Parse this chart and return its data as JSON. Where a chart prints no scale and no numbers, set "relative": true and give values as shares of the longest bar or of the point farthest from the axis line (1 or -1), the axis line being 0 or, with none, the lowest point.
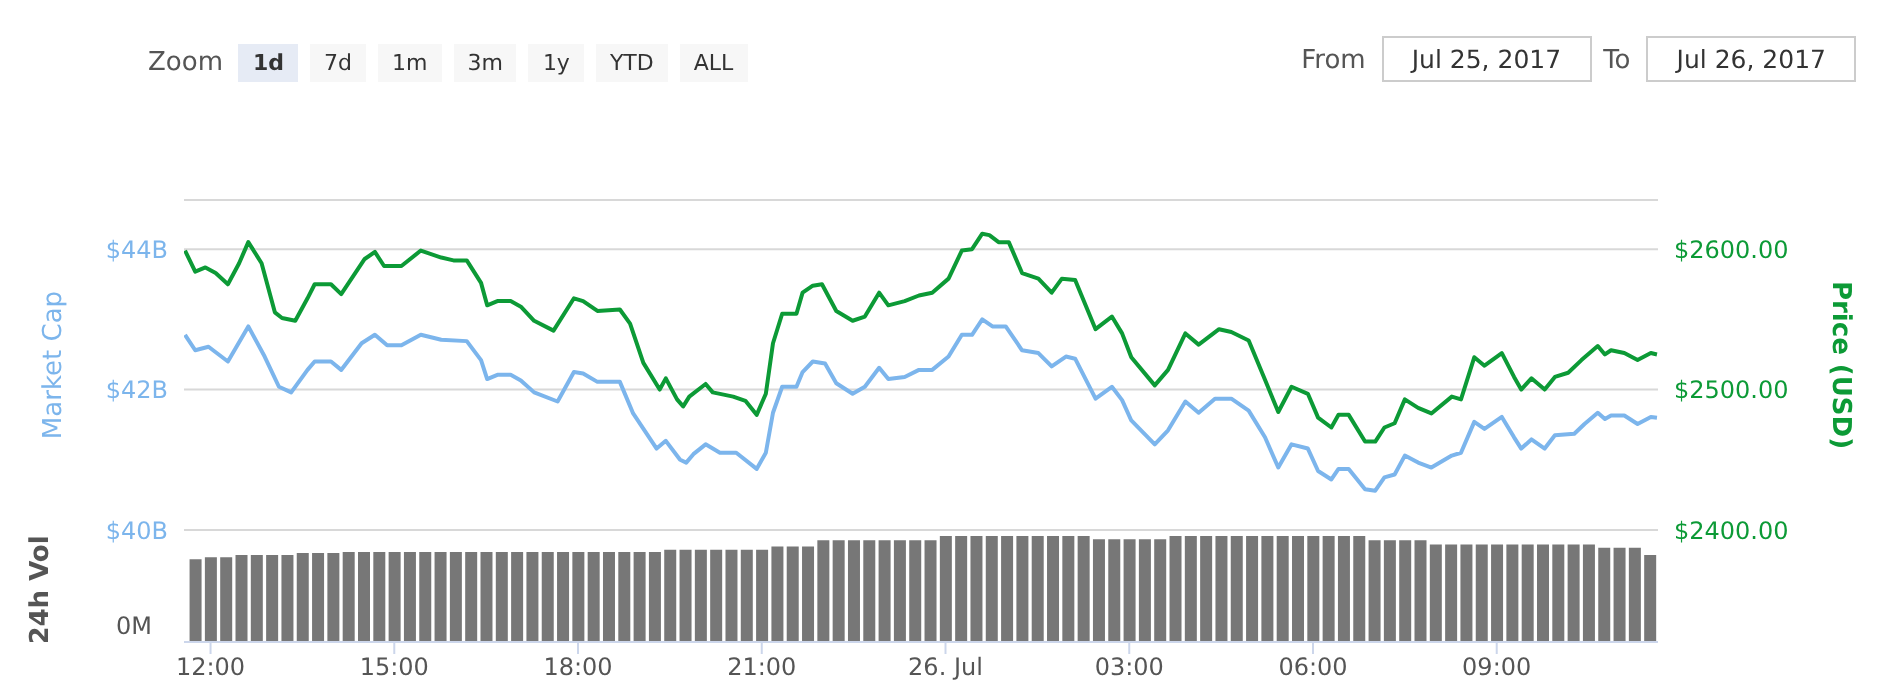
{
  "chart_data": [
    {
      "type": "line",
      "annotations": [
        "Zoom",
        "1d",
        "7d",
        "1m",
        "3m",
        "1y",
        "YTD",
        "ALL",
        "From",
        "Jul 25, 2017",
        "To",
        "Jul 26, 2017"
      ],
      "ylabel": "Market Cap",
      "y2label": "Price (USD)",
      "grid": "y",
      "marker": "none",
      "tick_labels": "y",
      "xlim": [
        "2017-07-25T11:34",
        "2017-07-26T11:38"
      ],
      "ylim": [
        40,
        44.7
      ],
      "yticks": [
        {
          "value": 40,
          "label": "$40B"
        },
        {
          "value": 42,
          "label": "$42B"
        },
        {
          "value": 44,
          "label": "$44B"
        }
      ],
      "y2lim": [
        2400,
        2635
      ],
      "y2ticks": [
        {
          "value": 2400,
          "label": "$2400.00"
        },
        {
          "value": 2500,
          "label": "$2500.00"
        },
        {
          "value": 2600,
          "label": "$2600.00"
        }
      ],
      "series": [
        {
          "color": "#7cb5ec",
          "x": [
            "2017-07-25T11:35",
            "2017-07-25T11:45",
            "2017-07-25T11:58",
            "2017-07-25T12:17",
            "2017-07-25T12:37",
            "2017-07-25T12:53",
            "2017-07-25T13:07",
            "2017-07-25T13:19",
            "2017-07-25T13:35",
            "2017-07-25T13:42",
            "2017-07-25T13:58",
            "2017-07-25T14:08",
            "2017-07-25T14:28",
            "2017-07-25T14:41",
            "2017-07-25T14:53",
            "2017-07-25T15:07",
            "2017-07-25T15:26",
            "2017-07-25T15:46",
            "2017-07-25T16:11",
            "2017-07-25T16:25",
            "2017-07-25T16:31",
            "2017-07-25T16:41",
            "2017-07-25T16:54",
            "2017-07-25T17:04",
            "2017-07-25T17:17",
            "2017-07-25T17:40",
            "2017-07-25T17:56",
            "2017-07-25T18:05",
            "2017-07-25T18:19",
            "2017-07-25T18:41",
            "2017-07-25T18:54",
            "2017-07-25T19:17",
            "2017-07-25T19:26",
            "2017-07-25T19:40",
            "2017-07-25T19:46",
            "2017-07-25T19:53",
            "2017-07-25T20:05",
            "2017-07-25T20:19",
            "2017-07-25T20:35",
            "2017-07-25T20:55",
            "2017-07-25T21:04",
            "2017-07-25T21:11",
            "2017-07-25T21:20",
            "2017-07-25T21:34",
            "2017-07-25T21:40",
            "2017-07-25T21:50",
            "2017-07-25T22:02",
            "2017-07-25T22:13",
            "2017-07-25T22:29",
            "2017-07-25T22:41",
            "2017-07-25T22:55",
            "2017-07-25T23:04",
            "2017-07-25T23:20",
            "2017-07-25T23:34",
            "2017-07-25T23:47",
            "2017-07-26T00:03",
            "2017-07-26T00:16",
            "2017-07-26T00:26",
            "2017-07-26T00:36",
            "2017-07-26T00:46",
            "2017-07-26T00:59",
            "2017-07-26T01:15",
            "2017-07-26T01:31",
            "2017-07-26T01:44",
            "2017-07-26T01:58",
            "2017-07-26T02:07",
            "2017-07-26T02:27",
            "2017-07-26T02:43",
            "2017-07-26T02:53",
            "2017-07-26T03:02",
            "2017-07-26T03:25",
            "2017-07-26T03:38",
            "2017-07-26T03:55",
            "2017-07-26T04:08",
            "2017-07-26T04:24",
            "2017-07-26T04:40",
            "2017-07-26T04:57",
            "2017-07-26T05:13",
            "2017-07-26T05:26",
            "2017-07-26T05:39",
            "2017-07-26T05:55",
            "2017-07-26T06:05",
            "2017-07-26T06:18",
            "2017-07-26T06:25",
            "2017-07-26T06:35",
            "2017-07-26T06:51",
            "2017-07-26T07:01",
            "2017-07-26T07:10",
            "2017-07-26T07:20",
            "2017-07-26T07:30",
            "2017-07-26T07:43",
            "2017-07-26T07:56",
            "2017-07-26T08:16",
            "2017-07-26T08:25",
            "2017-07-26T08:38",
            "2017-07-26T08:48",
            "2017-07-26T09:05",
            "2017-07-26T09:17",
            "2017-07-26T09:24",
            "2017-07-26T09:34",
            "2017-07-26T09:47",
            "2017-07-26T09:57",
            "2017-07-26T10:16",
            "2017-07-26T10:26",
            "2017-07-26T10:39",
            "2017-07-26T10:46",
            "2017-07-26T10:52",
            "2017-07-26T11:05",
            "2017-07-26T11:18",
            "2017-07-26T11:31",
            "2017-07-26T11:37"
          ],
          "values": [
            42.78,
            42.56,
            42.61,
            42.4,
            42.9,
            42.47,
            42.04,
            41.96,
            42.28,
            42.4,
            42.4,
            42.28,
            42.66,
            42.78,
            42.63,
            42.63,
            42.78,
            42.71,
            42.69,
            42.42,
            42.15,
            42.21,
            42.21,
            42.13,
            41.96,
            41.83,
            42.25,
            42.23,
            42.11,
            42.11,
            41.66,
            41.16,
            41.27,
            41.0,
            40.96,
            41.08,
            41.22,
            41.1,
            41.1,
            40.87,
            41.1,
            41.67,
            42.04,
            42.04,
            42.25,
            42.4,
            42.37,
            42.09,
            41.94,
            42.04,
            42.31,
            42.15,
            42.18,
            42.28,
            42.28,
            42.47,
            42.78,
            42.78,
            43.0,
            42.9,
            42.9,
            42.56,
            42.52,
            42.33,
            42.47,
            42.44,
            41.87,
            42.04,
            41.85,
            41.56,
            41.22,
            41.42,
            41.83,
            41.67,
            41.87,
            41.87,
            41.7,
            41.32,
            40.89,
            41.22,
            41.16,
            40.84,
            40.72,
            40.87,
            40.87,
            40.58,
            40.56,
            40.75,
            40.79,
            41.06,
            40.96,
            40.89,
            41.06,
            41.1,
            41.54,
            41.44,
            41.61,
            41.32,
            41.16,
            41.29,
            41.16,
            41.35,
            41.37,
            41.51,
            41.67,
            41.58,
            41.63,
            41.63,
            41.51,
            41.61,
            41.6
          ]
        },
        {
          "color": "#0c9a36",
          "axis": "y2",
          "x": [
            "2017-07-25T11:35",
            "2017-07-25T11:45",
            "2017-07-25T11:55",
            "2017-07-25T12:05",
            "2017-07-25T12:17",
            "2017-07-25T12:28",
            "2017-07-25T12:37",
            "2017-07-25T12:50",
            "2017-07-25T13:03",
            "2017-07-25T13:10",
            "2017-07-25T13:23",
            "2017-07-25T13:35",
            "2017-07-25T13:42",
            "2017-07-25T13:58",
            "2017-07-25T14:08",
            "2017-07-25T14:31",
            "2017-07-25T14:41",
            "2017-07-25T14:50",
            "2017-07-25T15:07",
            "2017-07-25T15:26",
            "2017-07-25T15:46",
            "2017-07-25T15:58",
            "2017-07-25T16:11",
            "2017-07-25T16:25",
            "2017-07-25T16:31",
            "2017-07-25T16:41",
            "2017-07-25T16:54",
            "2017-07-25T17:04",
            "2017-07-25T17:17",
            "2017-07-25T17:36",
            "2017-07-25T17:56",
            "2017-07-25T18:05",
            "2017-07-25T18:19",
            "2017-07-25T18:41",
            "2017-07-25T18:51",
            "2017-07-25T19:04",
            "2017-07-25T19:20",
            "2017-07-25T19:26",
            "2017-07-25T19:37",
            "2017-07-25T19:43",
            "2017-07-25T19:49",
            "2017-07-25T20:05",
            "2017-07-25T20:12",
            "2017-07-25T20:32",
            "2017-07-25T20:44",
            "2017-07-25T20:55",
            "2017-07-25T21:04",
            "2017-07-25T21:11",
            "2017-07-25T21:20",
            "2017-07-25T21:34",
            "2017-07-25T21:40",
            "2017-07-25T21:50",
            "2017-07-25T21:59",
            "2017-07-25T22:13",
            "2017-07-25T22:29",
            "2017-07-25T22:41",
            "2017-07-25T22:55",
            "2017-07-25T23:04",
            "2017-07-25T23:20",
            "2017-07-25T23:34",
            "2017-07-25T23:47",
            "2017-07-26T00:03",
            "2017-07-26T00:16",
            "2017-07-26T00:26",
            "2017-07-26T00:36",
            "2017-07-26T00:43",
            "2017-07-26T00:52",
            "2017-07-26T01:02",
            "2017-07-26T01:15",
            "2017-07-26T01:31",
            "2017-07-26T01:44",
            "2017-07-26T01:54",
            "2017-07-26T02:07",
            "2017-07-26T02:27",
            "2017-07-26T02:43",
            "2017-07-26T02:53",
            "2017-07-26T03:02",
            "2017-07-26T03:25",
            "2017-07-26T03:38",
            "2017-07-26T03:55",
            "2017-07-26T04:08",
            "2017-07-26T04:28",
            "2017-07-26T04:40",
            "2017-07-26T04:57",
            "2017-07-26T05:13",
            "2017-07-26T05:26",
            "2017-07-26T05:39",
            "2017-07-26T05:55",
            "2017-07-26T06:05",
            "2017-07-26T06:18",
            "2017-07-26T06:25",
            "2017-07-26T06:35",
            "2017-07-26T06:51",
            "2017-07-26T07:01",
            "2017-07-26T07:10",
            "2017-07-26T07:20",
            "2017-07-26T07:30",
            "2017-07-26T07:43",
            "2017-07-26T07:56",
            "2017-07-26T08:16",
            "2017-07-26T08:25",
            "2017-07-26T08:38",
            "2017-07-26T08:48",
            "2017-07-26T09:05",
            "2017-07-26T09:17",
            "2017-07-26T09:24",
            "2017-07-26T09:34",
            "2017-07-26T09:47",
            "2017-07-26T09:57",
            "2017-07-26T10:10",
            "2017-07-26T10:23",
            "2017-07-26T10:39",
            "2017-07-26T10:46",
            "2017-07-26T10:52",
            "2017-07-26T11:05",
            "2017-07-26T11:18",
            "2017-07-26T11:31",
            "2017-07-26T11:37"
          ],
          "values": [
            2599,
            2584,
            2587,
            2583,
            2575,
            2590,
            2605,
            2590,
            2555,
            2551,
            2549,
            2565,
            2575,
            2575,
            2568,
            2593,
            2598,
            2588,
            2588,
            2599,
            2594,
            2592,
            2592,
            2576,
            2560,
            2563,
            2563,
            2559,
            2549,
            2542,
            2565,
            2563,
            2556,
            2557,
            2547,
            2519,
            2500,
            2508,
            2493,
            2488,
            2495,
            2504,
            2498,
            2495,
            2492,
            2482,
            2497,
            2533,
            2554,
            2554,
            2569,
            2574,
            2575,
            2556,
            2549,
            2552,
            2569,
            2560,
            2563,
            2567,
            2569,
            2579,
            2599,
            2600,
            2611,
            2610,
            2605,
            2605,
            2583,
            2579,
            2569,
            2579,
            2578,
            2543,
            2552,
            2540,
            2523,
            2503,
            2514,
            2540,
            2532,
            2543,
            2541,
            2535,
            2507,
            2484,
            2502,
            2497,
            2480,
            2473,
            2482,
            2482,
            2463,
            2463,
            2473,
            2476,
            2493,
            2487,
            2483,
            2495,
            2493,
            2523,
            2517,
            2526,
            2509,
            2500,
            2508,
            2500,
            2509,
            2512,
            2521,
            2531,
            2525,
            2528,
            2526,
            2521,
            2526,
            2525
          ]
        }
      ]
    },
    {
      "type": "bar",
      "relative": true,
      "ylabel": "24h Vol",
      "annotations": [
        "0M"
      ],
      "color": "#777777",
      "tick_labels": "x",
      "xlim": [
        "2017-07-25T11:34",
        "2017-07-26T11:38"
      ],
      "xticks": [
        {
          "value": "2017-07-25T12:00",
          "label": "12:00"
        },
        {
          "value": "2017-07-25T15:00",
          "label": "15:00"
        },
        {
          "value": "2017-07-25T18:00",
          "label": "18:00"
        },
        {
          "value": "2017-07-25T21:00",
          "label": "21:00"
        },
        {
          "value": "2017-07-26T00:00",
          "label": "26. Jul"
        },
        {
          "value": "2017-07-26T03:00",
          "label": "03:00"
        },
        {
          "value": "2017-07-26T06:00",
          "label": "06:00"
        },
        {
          "value": "2017-07-26T09:00",
          "label": "09:00"
        }
      ],
      "x": [
        "2017-07-25T11:45",
        "2017-07-25T12:00",
        "2017-07-25T12:15",
        "2017-07-25T12:30",
        "2017-07-25T12:45",
        "2017-07-25T13:00",
        "2017-07-25T13:15",
        "2017-07-25T13:30",
        "2017-07-25T13:45",
        "2017-07-25T14:00",
        "2017-07-25T14:15",
        "2017-07-25T14:30",
        "2017-07-25T14:45",
        "2017-07-25T15:00",
        "2017-07-25T15:15",
        "2017-07-25T15:30",
        "2017-07-25T15:45",
        "2017-07-25T16:00",
        "2017-07-25T16:15",
        "2017-07-25T16:30",
        "2017-07-25T16:45",
        "2017-07-25T17:00",
        "2017-07-25T17:15",
        "2017-07-25T17:30",
        "2017-07-25T17:45",
        "2017-07-25T18:00",
        "2017-07-25T18:15",
        "2017-07-25T18:30",
        "2017-07-25T18:45",
        "2017-07-25T19:00",
        "2017-07-25T19:15",
        "2017-07-25T19:30",
        "2017-07-25T19:45",
        "2017-07-25T20:00",
        "2017-07-25T20:15",
        "2017-07-25T20:30",
        "2017-07-25T20:45",
        "2017-07-25T21:00",
        "2017-07-25T21:15",
        "2017-07-25T21:30",
        "2017-07-25T21:45",
        "2017-07-25T22:00",
        "2017-07-25T22:15",
        "2017-07-25T22:30",
        "2017-07-25T22:45",
        "2017-07-25T23:00",
        "2017-07-25T23:15",
        "2017-07-25T23:30",
        "2017-07-25T23:45",
        "2017-07-26T00:00",
        "2017-07-26T00:15",
        "2017-07-26T00:30",
        "2017-07-26T00:45",
        "2017-07-26T01:00",
        "2017-07-26T01:15",
        "2017-07-26T01:30",
        "2017-07-26T01:45",
        "2017-07-26T02:00",
        "2017-07-26T02:15",
        "2017-07-26T02:30",
        "2017-07-26T02:45",
        "2017-07-26T03:00",
        "2017-07-26T03:15",
        "2017-07-26T03:30",
        "2017-07-26T03:45",
        "2017-07-26T04:00",
        "2017-07-26T04:15",
        "2017-07-26T04:30",
        "2017-07-26T04:45",
        "2017-07-26T05:00",
        "2017-07-26T05:15",
        "2017-07-26T05:30",
        "2017-07-26T05:45",
        "2017-07-26T06:00",
        "2017-07-26T06:15",
        "2017-07-26T06:30",
        "2017-07-26T06:45",
        "2017-07-26T07:00",
        "2017-07-26T07:15",
        "2017-07-26T07:30",
        "2017-07-26T07:45",
        "2017-07-26T08:00",
        "2017-07-26T08:15",
        "2017-07-26T08:30",
        "2017-07-26T08:45",
        "2017-07-26T09:00",
        "2017-07-26T09:15",
        "2017-07-26T09:30",
        "2017-07-26T09:45",
        "2017-07-26T10:00",
        "2017-07-26T10:15",
        "2017-07-26T10:30",
        "2017-07-26T10:45",
        "2017-07-26T11:00",
        "2017-07-26T11:15",
        "2017-07-26T11:30"
      ],
      "values": [
        0.78,
        0.8,
        0.8,
        0.82,
        0.82,
        0.82,
        0.82,
        0.84,
        0.84,
        0.84,
        0.85,
        0.85,
        0.85,
        0.85,
        0.85,
        0.85,
        0.85,
        0.85,
        0.85,
        0.85,
        0.85,
        0.85,
        0.85,
        0.85,
        0.85,
        0.85,
        0.85,
        0.85,
        0.85,
        0.85,
        0.85,
        0.87,
        0.87,
        0.87,
        0.87,
        0.87,
        0.87,
        0.87,
        0.9,
        0.9,
        0.9,
        0.96,
        0.96,
        0.96,
        0.96,
        0.96,
        0.96,
        0.96,
        0.96,
        1,
        1,
        1,
        1,
        1,
        1,
        1,
        1,
        1,
        1,
        0.97,
        0.97,
        0.97,
        0.97,
        0.97,
        1,
        1,
        1,
        1,
        1,
        1,
        1,
        1,
        1,
        1,
        1,
        1,
        1,
        0.96,
        0.96,
        0.96,
        0.96,
        0.92,
        0.92,
        0.92,
        0.92,
        0.92,
        0.92,
        0.92,
        0.92,
        0.92,
        0.92,
        0.92,
        0.89,
        0.89,
        0.89,
        0.82
      ]
    }
  ]
}
